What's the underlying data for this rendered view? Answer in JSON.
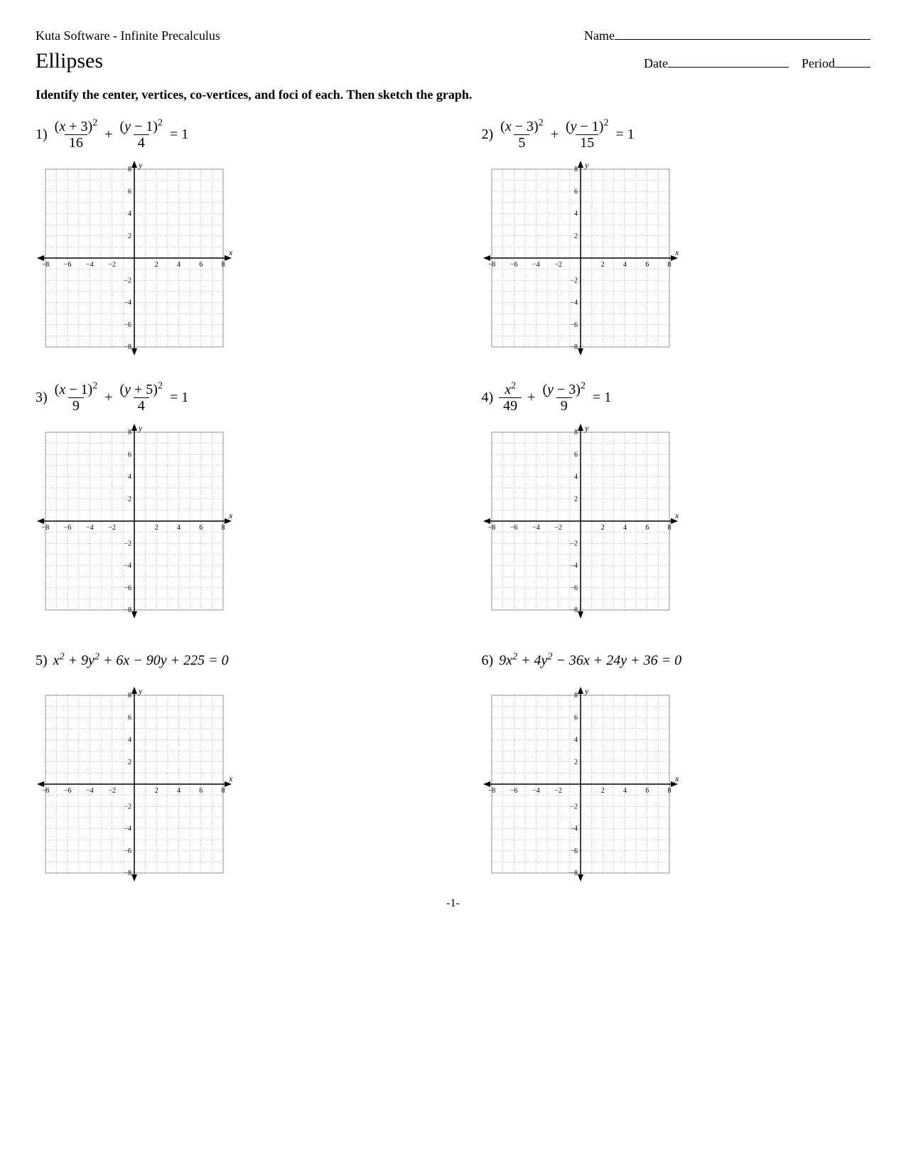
{
  "header": {
    "software": "Kuta Software - Infinite Precalculus",
    "name_label": "Name",
    "name_line_width": 360
  },
  "title": "Ellipses",
  "date_label": "Date",
  "date_line_width": 170,
  "period_label": "Period",
  "period_line_width": 50,
  "instructions": "Identify the center, vertices, co-vertices, and foci of each.  Then sketch the graph.",
  "page_number": "-1-",
  "grid": {
    "size": 250,
    "xmin": -8,
    "xmax": 8,
    "ymin": -8,
    "ymax": 8,
    "major_step": 2,
    "grid_color": "#707070",
    "axis_color": "#000000",
    "font_size": 10,
    "axis_label_x": "x",
    "axis_label_y": "y"
  },
  "problems": [
    {
      "number": "1)",
      "type": "fraction",
      "terms": [
        {
          "num": "(x + 3)²",
          "den": "16"
        },
        {
          "num": "(y − 1)²",
          "den": "4"
        }
      ],
      "rhs": "= 1"
    },
    {
      "number": "2)",
      "type": "fraction",
      "terms": [
        {
          "num": "(x − 3)²",
          "den": "5"
        },
        {
          "num": "(y − 1)²",
          "den": "15"
        }
      ],
      "rhs": "= 1"
    },
    {
      "number": "3)",
      "type": "fraction",
      "terms": [
        {
          "num": "(x − 1)²",
          "den": "9"
        },
        {
          "num": "(y + 5)²",
          "den": "4"
        }
      ],
      "rhs": "= 1"
    },
    {
      "number": "4)",
      "type": "fraction",
      "terms": [
        {
          "num": "x²",
          "den": "49"
        },
        {
          "num": "(y − 3)²",
          "den": "9"
        }
      ],
      "rhs": "= 1"
    },
    {
      "number": "5)",
      "type": "poly",
      "poly": "x² + 9y² + 6x − 90y + 225 = 0"
    },
    {
      "number": "6)",
      "type": "poly",
      "poly": "9x² + 4y² − 36x + 24y + 36 = 0"
    }
  ]
}
